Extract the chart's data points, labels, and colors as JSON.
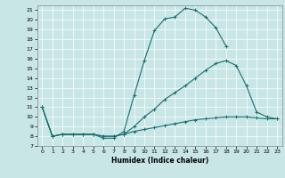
{
  "title": "",
  "xlabel": "Humidex (Indice chaleur)",
  "bg_color": "#c8e6e6",
  "line_color": "#1a6e6e",
  "grid_color": "#ffffff",
  "xlim": [
    -0.5,
    23.5
  ],
  "ylim": [
    7,
    21.5
  ],
  "xticks": [
    0,
    1,
    2,
    3,
    4,
    5,
    6,
    7,
    8,
    9,
    10,
    11,
    12,
    13,
    14,
    15,
    16,
    17,
    18,
    19,
    20,
    21,
    22,
    23
  ],
  "yticks": [
    7,
    8,
    9,
    10,
    11,
    12,
    13,
    14,
    15,
    16,
    17,
    18,
    19,
    20,
    21
  ],
  "line1_x": [
    0,
    1,
    2,
    3,
    4,
    5,
    6,
    7,
    8,
    9,
    10,
    11,
    12,
    13,
    14,
    15,
    16,
    17,
    18
  ],
  "line1_y": [
    11,
    8.0,
    8.2,
    8.2,
    8.2,
    8.2,
    7.8,
    7.8,
    8.5,
    12.2,
    15.8,
    18.9,
    20.1,
    20.3,
    21.2,
    21.0,
    20.3,
    19.2,
    17.3
  ],
  "line2_x": [
    0,
    1,
    2,
    3,
    4,
    5,
    6,
    7,
    8,
    9,
    10,
    11,
    12,
    13,
    14,
    15,
    16,
    17,
    18,
    19,
    20,
    21,
    22,
    23
  ],
  "line2_y": [
    11,
    8.0,
    8.2,
    8.2,
    8.2,
    8.2,
    8.0,
    8.0,
    8.2,
    9.0,
    10.0,
    10.8,
    11.8,
    12.5,
    13.2,
    14.0,
    14.8,
    15.5,
    15.8,
    15.3,
    13.2,
    10.5,
    10.0,
    9.8
  ],
  "line3_x": [
    0,
    1,
    2,
    3,
    4,
    5,
    6,
    7,
    8,
    9,
    10,
    11,
    12,
    13,
    14,
    15,
    16,
    17,
    18,
    19,
    20,
    21,
    22,
    23
  ],
  "line3_y": [
    11,
    8.0,
    8.2,
    8.2,
    8.2,
    8.2,
    8.0,
    8.0,
    8.2,
    8.5,
    8.7,
    8.9,
    9.1,
    9.3,
    9.5,
    9.7,
    9.8,
    9.9,
    10.0,
    10.0,
    10.0,
    9.9,
    9.8,
    9.8
  ]
}
